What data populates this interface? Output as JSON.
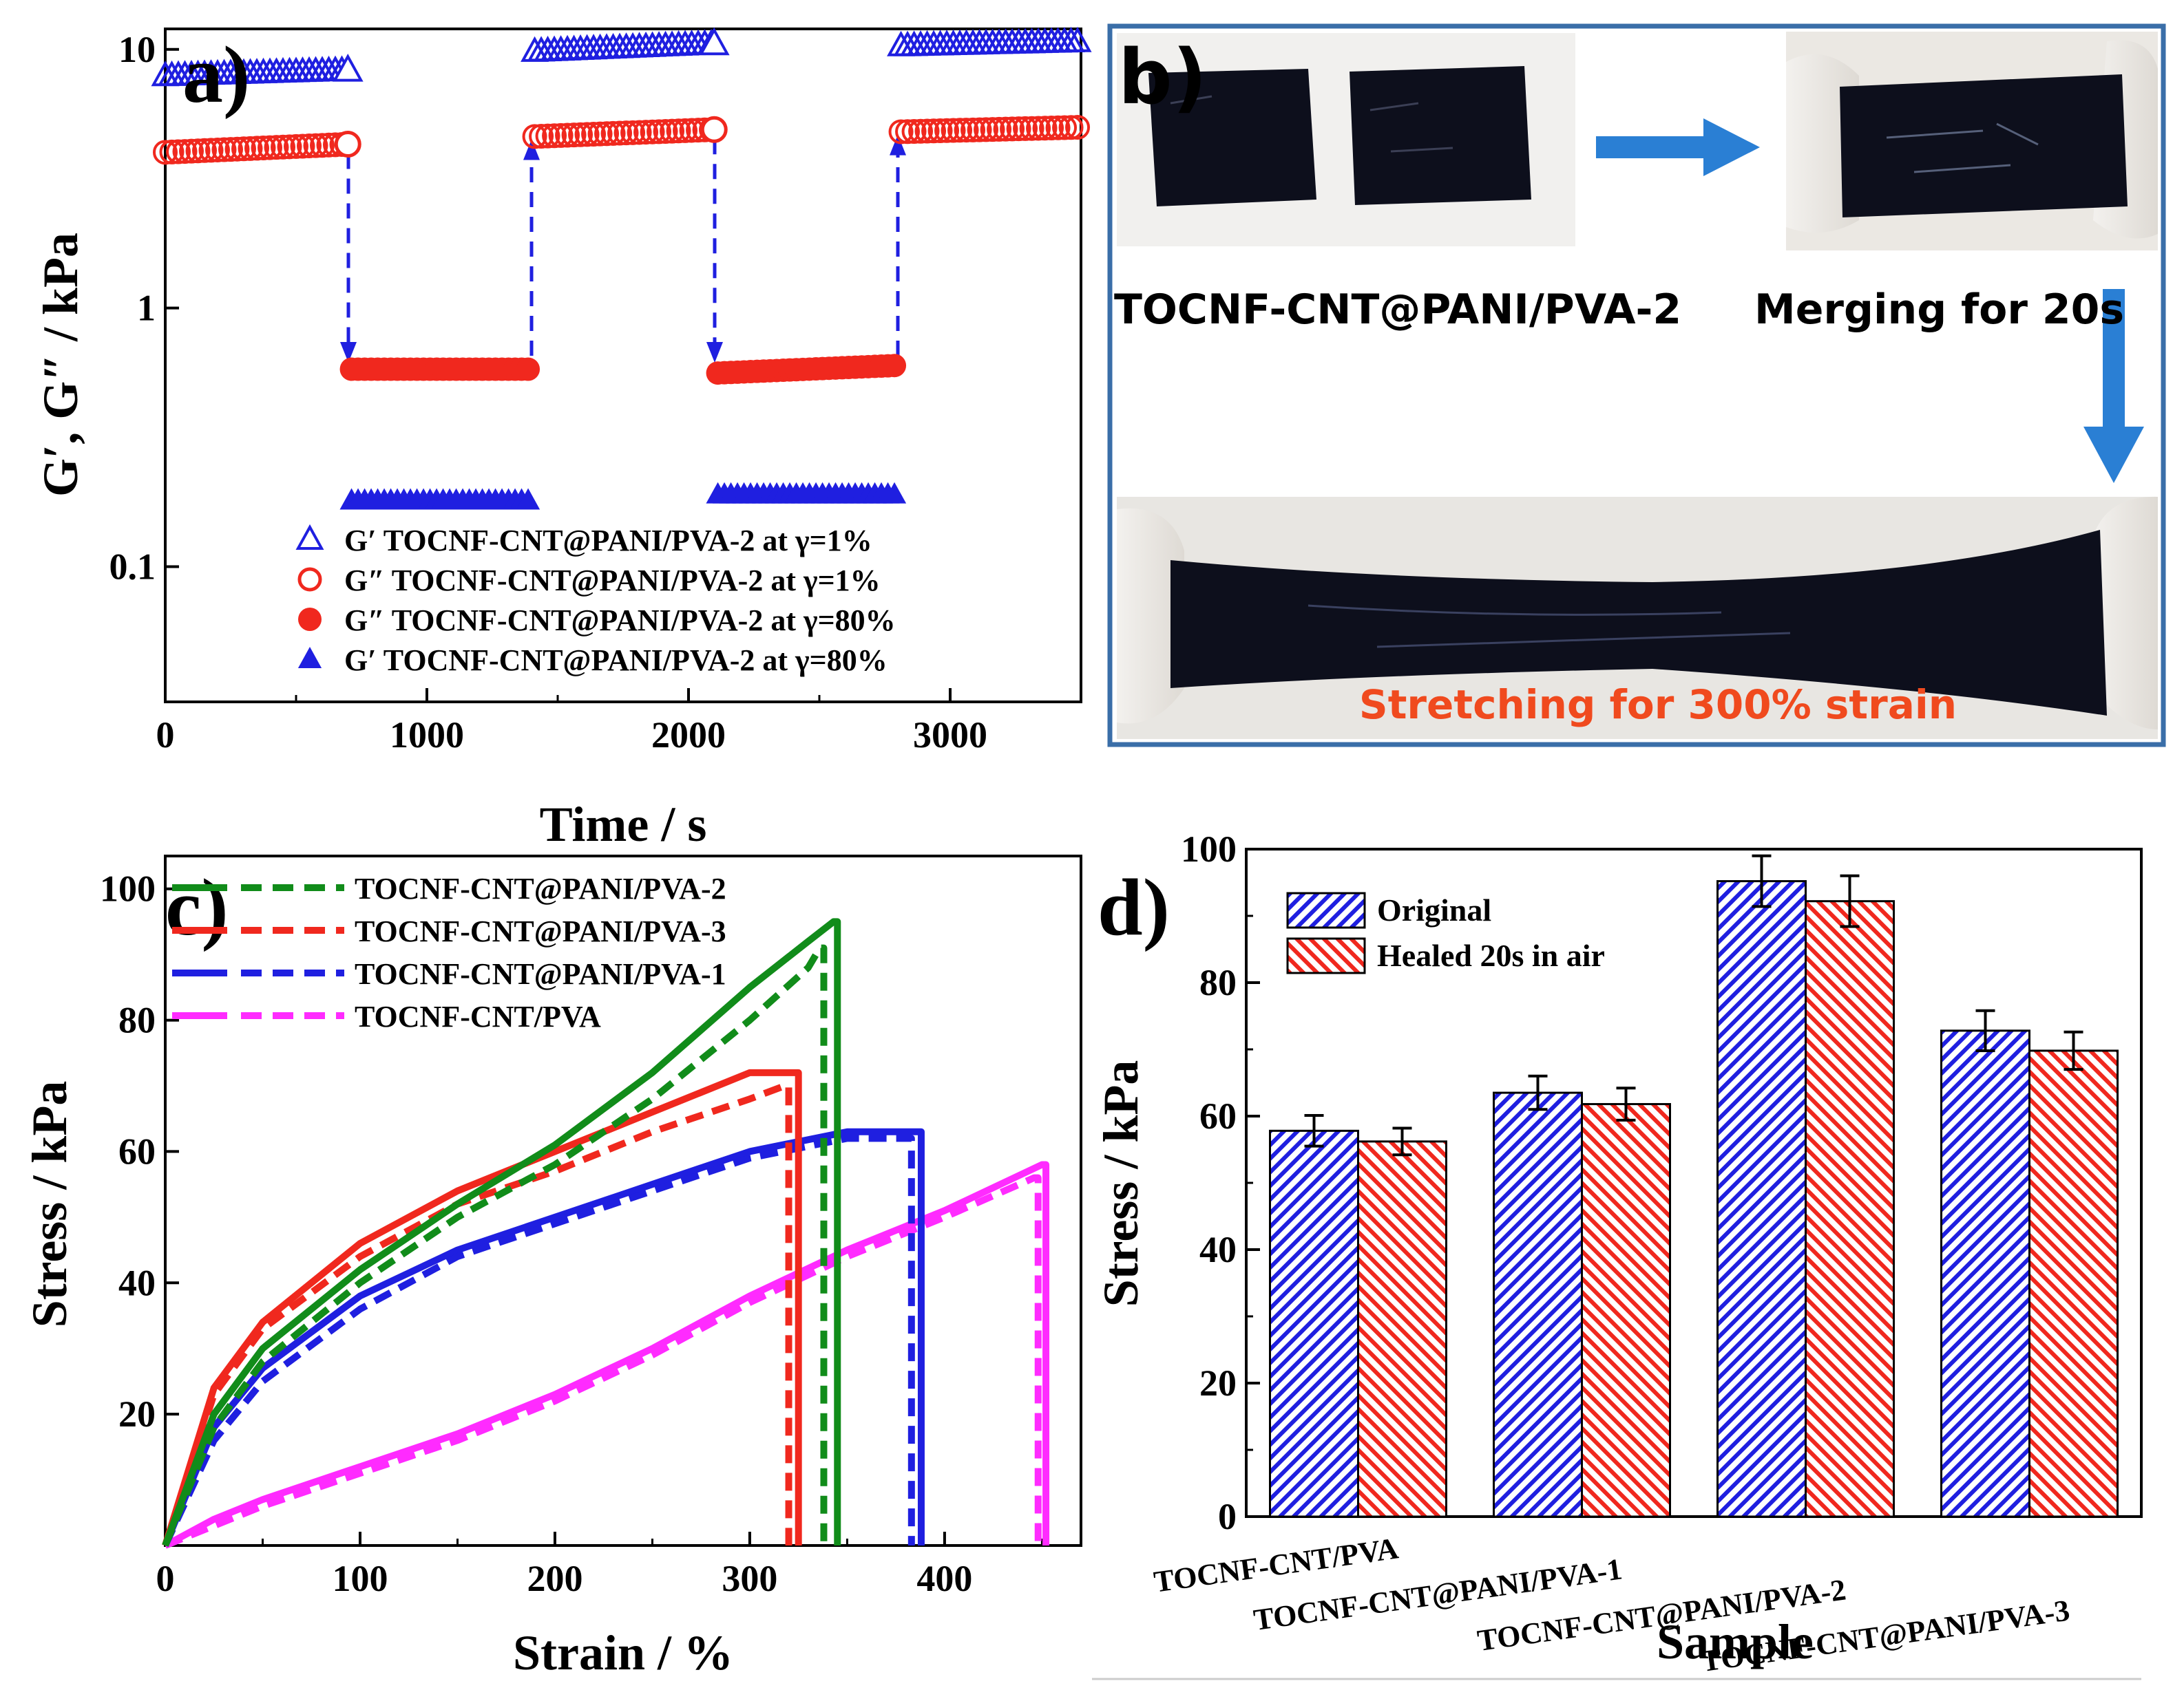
{
  "colors": {
    "blue": "#1f1fe0",
    "red": "#f0281e",
    "green": "#118c1a",
    "magenta": "#ff2bff",
    "arrow": "#2a7fd4",
    "panel_border": "#3a6ea8",
    "caption_orange": "#f04a1e",
    "hydrogel": "#0d0f1c",
    "glove": "#ece9e4"
  },
  "chart_data": [
    {
      "panel": "a",
      "type": "scatter",
      "panel_label": "a)",
      "xlabel": "Time / s",
      "ylabel": "G′, G″ / kPa",
      "xlim": [
        0,
        3500
      ],
      "ylim": [
        0.03,
        12
      ],
      "yscale": "log",
      "xticks": [
        0,
        1000,
        2000,
        3000
      ],
      "xtick_labels": [
        "0",
        "1000",
        "2000",
        "3000"
      ],
      "yticks": [
        0.1,
        1,
        10
      ],
      "ytick_labels": [
        "0.1",
        "1",
        "10"
      ],
      "legend_placement": "bottom-right",
      "segments": [
        [
          0,
          700
        ],
        [
          700,
          1400
        ],
        [
          1400,
          2100
        ],
        [
          2100,
          2800
        ],
        [
          2800,
          3500
        ]
      ],
      "segment_strain": [
        "1%",
        "80%",
        "1%",
        "80%",
        "1%"
      ],
      "series": [
        {
          "name": "G′ TOCNF-CNT@PANI/PVA-2 at γ=1%",
          "marker": "triangle-open",
          "color": "blue",
          "x": [
            0,
            700,
            1400,
            2100,
            2800,
            3500
          ],
          "values": [
            7.9,
            8.3,
            9.8,
            10.5,
            10.3,
            10.7
          ]
        },
        {
          "name": "G″ TOCNF-CNT@PANI/PVA-2 at γ=1%",
          "marker": "circle-open",
          "color": "red",
          "x": [
            0,
            700,
            1400,
            2100,
            2800,
            3500
          ],
          "values": [
            4.0,
            4.3,
            4.6,
            4.9,
            4.8,
            5.0
          ]
        },
        {
          "name": "G″ TOCNF-CNT@PANI/PVA-2 at γ=80%",
          "marker": "circle-filled",
          "color": "red",
          "x": [
            700,
            1400,
            2100,
            2800
          ],
          "values": [
            0.58,
            0.58,
            0.56,
            0.6
          ]
        },
        {
          "name": "G′ TOCNF-CNT@PANI/PVA-2 at γ=80%",
          "marker": "triangle-filled",
          "color": "blue",
          "x": [
            700,
            1400,
            2100,
            2800
          ],
          "values": [
            0.18,
            0.18,
            0.19,
            0.19
          ]
        }
      ],
      "transitions": [
        {
          "x": 700,
          "from": 4.3,
          "to": 0.6
        },
        {
          "x": 1400,
          "from": 0.6,
          "to": 4.6
        },
        {
          "x": 2100,
          "from": 4.9,
          "to": 0.6
        },
        {
          "x": 2800,
          "from": 0.6,
          "to": 4.8
        }
      ]
    },
    {
      "panel": "c",
      "type": "line",
      "panel_label": "c)",
      "xlabel": "Strain / %",
      "ylabel": "Stress / kPa",
      "xlim": [
        0,
        470
      ],
      "ylim": [
        0,
        105
      ],
      "xticks": [
        0,
        100,
        200,
        300,
        400
      ],
      "xtick_labels": [
        "0",
        "100",
        "200",
        "300",
        "400"
      ],
      "yticks": [
        20,
        40,
        60,
        80,
        100
      ],
      "ytick_labels": [
        "20",
        "40",
        "60",
        "80",
        "100"
      ],
      "legend_placement": "top-left",
      "series": [
        {
          "name": "TOCNF-CNT@PANI/PVA-2",
          "color": "green",
          "x": [
            0,
            25,
            50,
            100,
            150,
            200,
            250,
            300,
            330,
            343,
            345,
            345
          ],
          "values": [
            0,
            20,
            30,
            42,
            52,
            61,
            72,
            85,
            92,
            95,
            95,
            0
          ],
          "healed_x": [
            0,
            25,
            50,
            100,
            150,
            200,
            250,
            300,
            330,
            336,
            338,
            338
          ],
          "healed_values": [
            0,
            18,
            28,
            40,
            50,
            58,
            68,
            80,
            88,
            91,
            91,
            0
          ]
        },
        {
          "name": "TOCNF-CNT@PANI/PVA-3",
          "color": "red",
          "x": [
            0,
            25,
            50,
            100,
            150,
            200,
            250,
            300,
            320,
            325,
            325
          ],
          "values": [
            0,
            24,
            34,
            46,
            54,
            60,
            66,
            72,
            72,
            72,
            0
          ],
          "healed_x": [
            0,
            25,
            50,
            100,
            150,
            200,
            250,
            300,
            318,
            320,
            320
          ],
          "healed_values": [
            0,
            23,
            33,
            44,
            52,
            57,
            63,
            68,
            70,
            70,
            0
          ]
        },
        {
          "name": "TOCNF-CNT@PANI/PVA-1",
          "color": "blue",
          "x": [
            0,
            25,
            50,
            100,
            150,
            200,
            250,
            300,
            350,
            385,
            388,
            388
          ],
          "values": [
            0,
            18,
            27,
            38,
            45,
            50,
            55,
            60,
            63,
            63,
            63,
            0
          ],
          "healed_x": [
            0,
            25,
            50,
            100,
            150,
            200,
            250,
            300,
            350,
            380,
            383,
            383
          ],
          "healed_values": [
            0,
            16,
            25,
            36,
            44,
            49,
            54,
            59,
            62,
            62,
            62,
            0
          ]
        },
        {
          "name": "TOCNF-CNT/PVA",
          "color": "magenta",
          "x": [
            0,
            25,
            50,
            100,
            150,
            200,
            250,
            300,
            350,
            400,
            450,
            452,
            452
          ],
          "values": [
            0,
            4,
            7,
            12,
            17,
            23,
            30,
            38,
            45,
            51,
            58,
            58,
            0
          ],
          "healed_x": [
            0,
            25,
            50,
            100,
            150,
            200,
            250,
            300,
            350,
            400,
            446,
            448,
            448
          ],
          "healed_values": [
            0,
            3,
            6,
            11,
            16,
            22,
            29,
            37,
            44,
            50,
            56,
            56,
            0
          ]
        }
      ]
    },
    {
      "panel": "d",
      "type": "bar",
      "panel_label": "d)",
      "xlabel": "Sample",
      "ylabel": "Stress / kPa",
      "ylim": [
        0,
        100
      ],
      "yticks": [
        0,
        20,
        40,
        60,
        80,
        100
      ],
      "ytick_labels": [
        "0",
        "20",
        "40",
        "60",
        "80",
        "100"
      ],
      "legend_placement": "top-left",
      "categories": [
        "TOCNF-CNT/PVA",
        "TOCNF-CNT@PANI/PVA-1",
        "TOCNF-CNT@PANI/PVA-2",
        "TOCNF-CNT@PANI/PVA-3"
      ],
      "series": [
        {
          "name": "Original",
          "color": "blue",
          "values": [
            57.8,
            63.5,
            95.2,
            72.8
          ],
          "errors": [
            2.3,
            2.5,
            3.8,
            3.0
          ]
        },
        {
          "name": "Healed 20s in air",
          "color": "red",
          "values": [
            56.2,
            61.8,
            92.2,
            69.8
          ],
          "errors": [
            2.0,
            2.4,
            3.8,
            2.8
          ]
        }
      ]
    }
  ],
  "panel_b": {
    "label": "b)",
    "caption_left": "TOCNF-CNT@PANI/PVA-2",
    "caption_right": "Merging for 20s",
    "caption_bottom": "Stretching for 300% strain"
  }
}
